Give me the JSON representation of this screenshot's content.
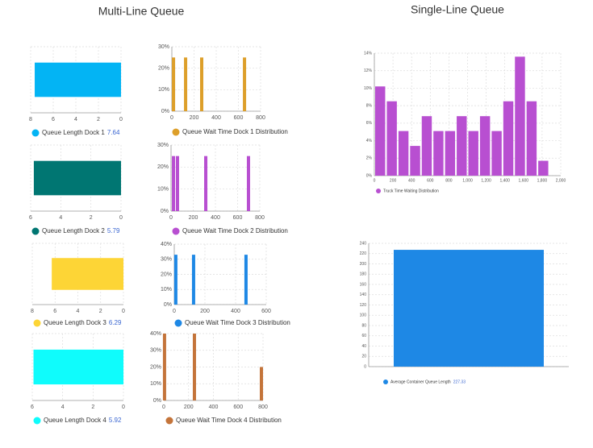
{
  "headings": [
    "Multi-Line Queue",
    "Single-Line Queue"
  ],
  "chart_data": [
    {
      "type": "hbar",
      "series": [
        {
          "name": "Queue Length Dock 1",
          "color": "#03b4f4",
          "values": [
            7.64
          ]
        }
      ],
      "xlim": [
        8,
        0
      ],
      "xticks": [
        8,
        6,
        4,
        2,
        0
      ],
      "grid": true,
      "legend_value_color": "#3a66d1"
    },
    {
      "type": "bar",
      "series": [
        {
          "name": "Queue Wait Time Dock 1 Distribution",
          "color": "#dd9f2a",
          "values": [
            25,
            25,
            25,
            25
          ]
        }
      ],
      "x": [
        15,
        124,
        269,
        655
      ],
      "xlim": [
        0,
        800
      ],
      "xticks": [
        0,
        200,
        400,
        600,
        800
      ],
      "ylim": [
        0,
        30
      ],
      "yticks": [
        {
          "value": 0,
          "label": "0%"
        },
        {
          "value": 10,
          "label": "10%"
        },
        {
          "value": 20,
          "label": "20%"
        },
        {
          "value": 30,
          "label": "30%"
        }
      ],
      "grid": true,
      "legend_value_color": "#e8336d"
    },
    {
      "type": "hbar",
      "series": [
        {
          "name": "Queue Length Dock 2",
          "color": "#007672",
          "values": [
            5.79
          ]
        }
      ],
      "xlim": [
        6,
        0
      ],
      "xticks": [
        6,
        4,
        2,
        0
      ],
      "grid": true,
      "legend_value_color": "#3a66d1"
    },
    {
      "type": "bar",
      "series": [
        {
          "name": "Queue Wait Time Dock 2 Distribution",
          "color": "#b84fd1",
          "values": [
            25,
            25,
            25,
            25
          ]
        }
      ],
      "x": [
        22,
        58,
        313,
        698
      ],
      "xlim": [
        0,
        800
      ],
      "xticks": [
        0,
        200,
        400,
        600,
        800
      ],
      "ylim": [
        0,
        30
      ],
      "yticks": [
        {
          "value": 0,
          "label": "0%"
        },
        {
          "value": 10,
          "label": "10%"
        },
        {
          "value": 20,
          "label": "20%"
        },
        {
          "value": 30,
          "label": "30%"
        }
      ],
      "grid": true,
      "legend_value_color": "#e8336d"
    },
    {
      "type": "hbar",
      "series": [
        {
          "name": "Queue Length Dock 3",
          "color": "#fdd536",
          "values": [
            6.29
          ]
        }
      ],
      "xlim": [
        8,
        0
      ],
      "xticks": [
        8,
        6,
        4,
        2,
        0
      ],
      "grid": true,
      "legend_value_color": "#3a66d1"
    },
    {
      "type": "bar",
      "series": [
        {
          "name": "Queue Wait Time Dock 3 Distribution",
          "color": "#1e88e5",
          "values": [
            33,
            33,
            33
          ]
        }
      ],
      "x": [
        10,
        126,
        468
      ],
      "xlim": [
        0,
        600
      ],
      "xticks": [
        0,
        200,
        400,
        600
      ],
      "ylim": [
        0,
        40
      ],
      "yticks": [
        {
          "value": 0,
          "label": "0%"
        },
        {
          "value": 10,
          "label": "10%"
        },
        {
          "value": 20,
          "label": "20%"
        },
        {
          "value": 30,
          "label": "30%"
        },
        {
          "value": 40,
          "label": "40%"
        }
      ],
      "grid": true,
      "legend_value_color": "#e8336d"
    },
    {
      "type": "hbar",
      "series": [
        {
          "name": "Queue Length Dock 4",
          "color": "#0ffcfc",
          "values": [
            5.92
          ]
        }
      ],
      "xlim": [
        6,
        0
      ],
      "xticks": [
        6,
        4,
        2,
        0
      ],
      "grid": true,
      "legend_value_color": "#3a66d1"
    },
    {
      "type": "bar",
      "series": [
        {
          "name": "Queue Wait Time Dock 4 Distribution",
          "color": "#c4743a",
          "values": [
            40,
            40,
            20
          ]
        }
      ],
      "x": [
        6,
        247,
        787
      ],
      "xlim": [
        0,
        800
      ],
      "xticks": [
        0,
        200,
        400,
        600,
        800
      ],
      "ylim": [
        0,
        40
      ],
      "yticks": [
        {
          "value": 0,
          "label": "0%"
        },
        {
          "value": 10,
          "label": "10%"
        },
        {
          "value": 20,
          "label": "20%"
        },
        {
          "value": 30,
          "label": "30%"
        },
        {
          "value": 40,
          "label": "40%"
        }
      ],
      "grid": true,
      "legend_value_color": "#e8336d"
    },
    {
      "type": "histogram",
      "series": [
        {
          "name": "Truck Time Waiting Distribution",
          "color": "#b84fd1",
          "values": [
            10.2,
            8.5,
            5.1,
            3.4,
            6.8,
            5.1,
            5.1,
            6.8,
            5.1,
            6.8,
            5.1,
            8.5,
            13.6,
            8.5,
            1.7
          ]
        }
      ],
      "bins": [
        0,
        125,
        250,
        375,
        500,
        625,
        750,
        875,
        1000,
        1125,
        1250,
        1375,
        1500,
        1625,
        1750,
        1875
      ],
      "xlim": [
        0,
        2000
      ],
      "xticks": [
        0,
        200,
        400,
        600,
        800,
        {
          "value": 1000,
          "label": "1,000"
        },
        {
          "value": 1200,
          "label": "1,200"
        },
        {
          "value": 1400,
          "label": "1,400"
        },
        {
          "value": 1600,
          "label": "1,600"
        },
        {
          "value": 1800,
          "label": "1,800"
        },
        {
          "value": 2000,
          "label": "2,000"
        }
      ],
      "ylim": [
        0,
        14
      ],
      "yticks": [
        {
          "value": 0,
          "label": "0%"
        },
        {
          "value": 2,
          "label": "2%"
        },
        {
          "value": 4,
          "label": "4%"
        },
        {
          "value": 6,
          "label": "6%"
        },
        {
          "value": 8,
          "label": "8%"
        },
        {
          "value": 10,
          "label": "10%"
        },
        {
          "value": 12,
          "label": "12%"
        },
        {
          "value": 14,
          "label": "14%"
        }
      ],
      "grid": true,
      "legend_value_color": "#2e9d48"
    },
    {
      "type": "bar",
      "series": [
        {
          "name": "Average Container Queue Length",
          "color": "#1e88e5",
          "values": [
            227.33
          ]
        }
      ],
      "ylim": [
        0,
        240
      ],
      "yticks": [
        0,
        20,
        40,
        60,
        80,
        100,
        120,
        140,
        160,
        180,
        200,
        220,
        240
      ],
      "grid": true,
      "legend_value_color": "#3a66d1"
    }
  ]
}
